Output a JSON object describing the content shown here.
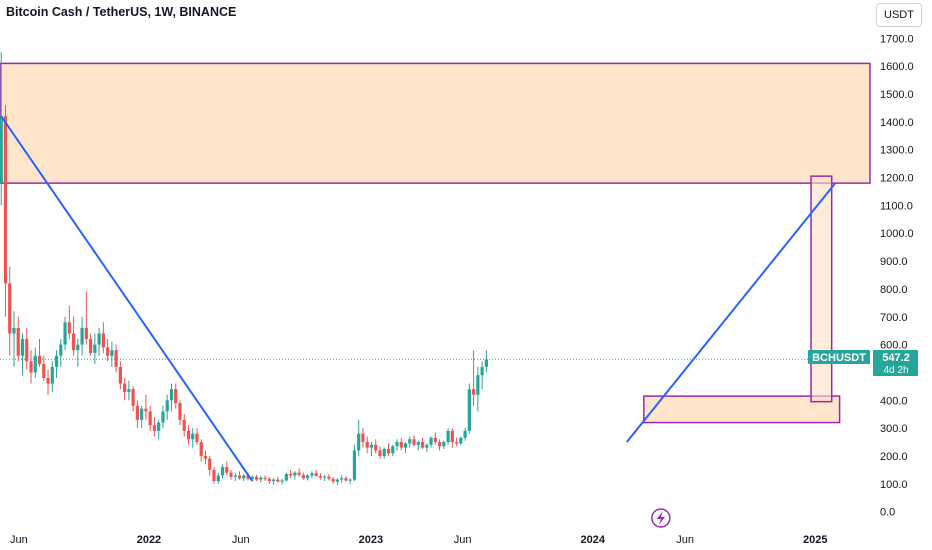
{
  "header": {
    "title": "Bitcoin Cash / TetherUS, 1W, BINANCE",
    "currency_button": "USDT"
  },
  "price_label": {
    "symbol": "BCHUSDT",
    "price": "547.2",
    "countdown": "4d 2h"
  },
  "colors": {
    "up": "#26a69a",
    "down": "#ef5350",
    "trendline": "#2962ff",
    "zone_fill": "#ffe0c2",
    "zone_border": "#9c27b0",
    "price_line": "#26a69a",
    "marker": "#9c27b0"
  },
  "chart_data": {
    "type": "candlestick",
    "title": "Bitcoin Cash / TetherUS, 1W, BINANCE",
    "y_ticks": [
      "1700.0",
      "1600.0",
      "1500.0",
      "1400.0",
      "1300.0",
      "1200.0",
      "1100.0",
      "1000.0",
      "900.0",
      "800.0",
      "700.0",
      "600.0",
      "400.0",
      "300.0",
      "200.0",
      "100.0",
      "0.0"
    ],
    "ylim": [
      -30,
      1730
    ],
    "x_ticks": [
      {
        "label": "Jun",
        "date": "2021-06-01",
        "bold": false
      },
      {
        "label": "2022",
        "date": "2022-01-01",
        "bold": true
      },
      {
        "label": "Jun",
        "date": "2022-06-01",
        "bold": false
      },
      {
        "label": "2023",
        "date": "2023-01-01",
        "bold": true
      },
      {
        "label": "Jun",
        "date": "2023-06-01",
        "bold": false
      },
      {
        "label": "2024",
        "date": "2024-01-01",
        "bold": true
      },
      {
        "label": "Jun",
        "date": "2024-06-01",
        "bold": false
      },
      {
        "label": "2025",
        "date": "2025-01-01",
        "bold": true
      }
    ],
    "xlim": [
      "2021-05-01",
      "2025-04-01"
    ],
    "current_price": 547.2,
    "zones": [
      {
        "x0": "2021-05-01",
        "x1": "2025-04-01",
        "y0": 1180,
        "y1": 1610
      },
      {
        "x0": "2024-03-25",
        "x1": "2025-02-10",
        "y0": 320,
        "y1": 415
      }
    ],
    "marker_box": {
      "x0": "2024-12-25",
      "x1": "2025-01-28",
      "y0": 395,
      "y1": 1205
    },
    "trendlines": [
      {
        "x0": "2021-05-03",
        "y0": 1420,
        "x1": "2022-06-20",
        "y1": 110
      },
      {
        "x0": "2024-02-26",
        "y0": 250,
        "x1": "2025-02-03",
        "y1": 1180
      }
    ],
    "event_marker_date": "2024-04-22",
    "weekly_ohlc_start": "2021-05-03",
    "weekly_ohlc": [
      [
        1180,
        1650,
        1100,
        1420
      ],
      [
        1420,
        1460,
        700,
        820
      ],
      [
        820,
        880,
        560,
        640
      ],
      [
        640,
        720,
        520,
        660
      ],
      [
        660,
        700,
        540,
        560
      ],
      [
        560,
        640,
        490,
        620
      ],
      [
        620,
        660,
        510,
        540
      ],
      [
        540,
        580,
        460,
        500
      ],
      [
        500,
        590,
        480,
        560
      ],
      [
        560,
        620,
        520,
        530
      ],
      [
        530,
        560,
        470,
        480
      ],
      [
        480,
        510,
        420,
        460
      ],
      [
        460,
        540,
        430,
        520
      ],
      [
        520,
        580,
        480,
        560
      ],
      [
        560,
        620,
        520,
        600
      ],
      [
        600,
        700,
        580,
        680
      ],
      [
        680,
        740,
        620,
        640
      ],
      [
        640,
        700,
        560,
        580
      ],
      [
        580,
        620,
        520,
        600
      ],
      [
        600,
        700,
        560,
        660
      ],
      [
        660,
        790,
        600,
        620
      ],
      [
        620,
        640,
        560,
        570
      ],
      [
        570,
        640,
        530,
        600
      ],
      [
        600,
        660,
        560,
        640
      ],
      [
        640,
        680,
        570,
        590
      ],
      [
        590,
        620,
        540,
        560
      ],
      [
        560,
        610,
        520,
        580
      ],
      [
        580,
        600,
        500,
        520
      ],
      [
        520,
        540,
        440,
        460
      ],
      [
        460,
        480,
        400,
        430
      ],
      [
        430,
        470,
        400,
        440
      ],
      [
        440,
        450,
        360,
        380
      ],
      [
        380,
        400,
        300,
        330
      ],
      [
        330,
        380,
        300,
        370
      ],
      [
        370,
        420,
        330,
        360
      ],
      [
        360,
        380,
        290,
        310
      ],
      [
        310,
        340,
        270,
        290
      ],
      [
        290,
        330,
        260,
        320
      ],
      [
        320,
        380,
        300,
        360
      ],
      [
        360,
        420,
        330,
        400
      ],
      [
        400,
        460,
        360,
        440
      ],
      [
        440,
        460,
        370,
        390
      ],
      [
        390,
        400,
        310,
        330
      ],
      [
        330,
        350,
        270,
        290
      ],
      [
        290,
        310,
        240,
        260
      ],
      [
        260,
        300,
        230,
        280
      ],
      [
        280,
        300,
        240,
        250
      ],
      [
        250,
        260,
        180,
        200
      ],
      [
        200,
        220,
        170,
        190
      ],
      [
        190,
        200,
        130,
        150
      ],
      [
        150,
        160,
        100,
        110
      ],
      [
        110,
        140,
        100,
        130
      ],
      [
        130,
        170,
        120,
        160
      ],
      [
        160,
        180,
        130,
        140
      ],
      [
        140,
        150,
        115,
        125
      ],
      [
        125,
        140,
        110,
        130
      ],
      [
        130,
        145,
        115,
        120
      ],
      [
        120,
        135,
        110,
        130
      ],
      [
        130,
        140,
        112,
        118
      ],
      [
        118,
        130,
        108,
        125
      ],
      [
        125,
        132,
        110,
        115
      ],
      [
        115,
        128,
        105,
        122
      ],
      [
        122,
        130,
        110,
        118
      ],
      [
        118,
        125,
        100,
        110
      ],
      [
        110,
        120,
        98,
        115
      ],
      [
        115,
        125,
        105,
        108
      ],
      [
        108,
        118,
        98,
        112
      ],
      [
        112,
        140,
        108,
        135
      ],
      [
        135,
        150,
        120,
        130
      ],
      [
        130,
        145,
        115,
        140
      ],
      [
        140,
        155,
        125,
        132
      ],
      [
        132,
        140,
        115,
        120
      ],
      [
        120,
        135,
        112,
        130
      ],
      [
        130,
        145,
        120,
        138
      ],
      [
        138,
        150,
        125,
        128
      ],
      [
        128,
        138,
        115,
        122
      ],
      [
        122,
        132,
        110,
        126
      ],
      [
        126,
        135,
        112,
        118
      ],
      [
        118,
        125,
        100,
        108
      ],
      [
        108,
        120,
        95,
        115
      ],
      [
        115,
        130,
        105,
        120
      ],
      [
        120,
        128,
        108,
        112
      ],
      [
        112,
        120,
        100,
        115
      ],
      [
        115,
        240,
        110,
        220
      ],
      [
        220,
        330,
        200,
        280
      ],
      [
        280,
        300,
        230,
        250
      ],
      [
        250,
        270,
        210,
        230
      ],
      [
        230,
        250,
        200,
        240
      ],
      [
        240,
        260,
        210,
        220
      ],
      [
        220,
        235,
        190,
        200
      ],
      [
        200,
        230,
        190,
        225
      ],
      [
        225,
        245,
        200,
        210
      ],
      [
        210,
        240,
        200,
        235
      ],
      [
        235,
        260,
        220,
        250
      ],
      [
        250,
        265,
        220,
        230
      ],
      [
        230,
        250,
        210,
        245
      ],
      [
        245,
        270,
        230,
        260
      ],
      [
        260,
        275,
        235,
        240
      ],
      [
        240,
        255,
        220,
        250
      ],
      [
        250,
        265,
        225,
        230
      ],
      [
        230,
        245,
        215,
        240
      ],
      [
        240,
        270,
        230,
        265
      ],
      [
        265,
        285,
        240,
        250
      ],
      [
        250,
        260,
        220,
        235
      ],
      [
        235,
        255,
        225,
        250
      ],
      [
        250,
        300,
        240,
        290
      ],
      [
        290,
        300,
        230,
        250
      ],
      [
        250,
        265,
        235,
        245
      ],
      [
        245,
        270,
        240,
        265
      ],
      [
        265,
        300,
        255,
        290
      ],
      [
        290,
        460,
        280,
        440
      ],
      [
        440,
        580,
        380,
        420
      ],
      [
        420,
        520,
        360,
        490
      ],
      [
        490,
        540,
        440,
        520
      ],
      [
        520,
        580,
        500,
        547
      ]
    ]
  }
}
